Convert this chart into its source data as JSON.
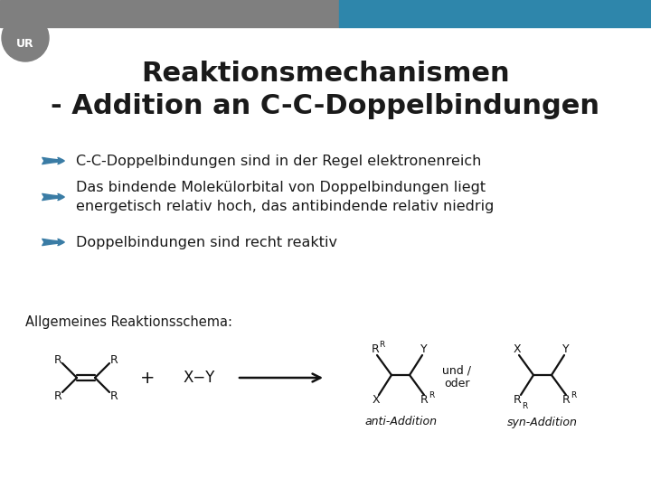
{
  "title_line1": "Reaktionsmechanismen",
  "title_line2": "- Addition an C-C-Doppelbindungen",
  "title_fontsize": 22,
  "bg_color": "#ffffff",
  "header_gray_color": "#7f7f7f",
  "header_blue_color": "#2e86ab",
  "arrow_fill_color": "#3a7ca5",
  "bullet_texts": [
    "C-C-Doppelbindungen sind in der Regel elektronenreich",
    "Das bindende Molekülorbital von Doppelbindungen liegt\nenergetisch relativ hoch, das antibindende relativ niedrig",
    "Doppelbindungen sind recht reaktiv"
  ],
  "bullet_fontsize": 11.5,
  "schema_label": "Allgemeines Reaktionsschema:",
  "schema_fontsize": 10.5,
  "anti_label": "anti-Addition",
  "syn_label": "syn-Addition",
  "text_color": "#1a1a1a",
  "struct_color": "#111111"
}
